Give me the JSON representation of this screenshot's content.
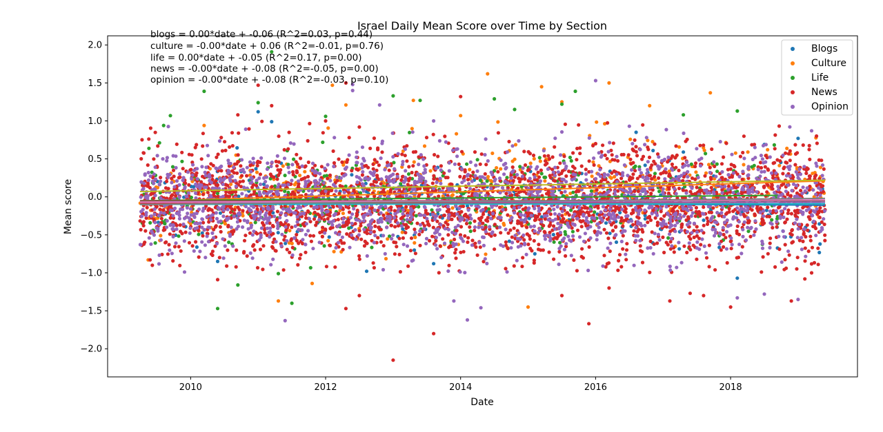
{
  "chart_data": {
    "type": "scatter",
    "title": "Israel Daily Mean Score over Time by Section",
    "xlabel": "Date",
    "ylabel": "Mean score",
    "xlim": [
      2008.77,
      2019.88
    ],
    "ylim": [
      -2.37,
      2.12
    ],
    "x_ticks": [
      "2010",
      "2012",
      "2014",
      "2016",
      "2018"
    ],
    "y_ticks": [
      "2.0",
      "1.5",
      "1.0",
      "0.5",
      "0.0",
      "−0.5",
      "−1.0",
      "−1.5",
      "−2.0"
    ],
    "grid": false,
    "legend_position": "top-right",
    "series": [
      {
        "name": "Blogs",
        "color": "#1f77b4",
        "x_range": [
          2009.5,
          2019.4
        ],
        "outliers": [
          [
            2011.0,
            1.12
          ],
          [
            2011.2,
            0.99
          ],
          [
            2010.4,
            -0.85
          ],
          [
            2013.6,
            -0.88
          ],
          [
            2015.1,
            -0.75
          ],
          [
            2017.3,
            0.59
          ],
          [
            2018.1,
            -1.07
          ],
          [
            2016.6,
            0.85
          ],
          [
            2018.5,
            0.69
          ],
          [
            2019.0,
            0.77
          ]
        ]
      },
      {
        "name": "Culture",
        "color": "#ff7f0e",
        "x_range": [
          2009.25,
          2019.4
        ],
        "outliers": [
          [
            2014.4,
            1.62
          ],
          [
            2012.3,
            1.21
          ],
          [
            2013.3,
            1.27
          ],
          [
            2015.2,
            1.45
          ],
          [
            2016.2,
            1.5
          ],
          [
            2017.7,
            1.37
          ],
          [
            2011.3,
            -1.37
          ],
          [
            2011.8,
            -1.14
          ],
          [
            2015.0,
            -1.45
          ],
          [
            2012.1,
            1.47
          ],
          [
            2016.8,
            1.2
          ],
          [
            2010.2,
            0.94
          ],
          [
            2014.0,
            1.07
          ],
          [
            2015.5,
            1.25
          ]
        ]
      },
      {
        "name": "Life",
        "color": "#2ca02c",
        "x_range": [
          2009.25,
          2018.7
        ],
        "outliers": [
          [
            2011.2,
            1.91
          ],
          [
            2010.2,
            1.39
          ],
          [
            2013.4,
            1.27
          ],
          [
            2015.7,
            1.39
          ],
          [
            2009.7,
            1.07
          ],
          [
            2011.0,
            1.24
          ],
          [
            2012.0,
            1.06
          ],
          [
            2013.0,
            1.33
          ],
          [
            2014.5,
            1.29
          ],
          [
            2015.5,
            1.22
          ],
          [
            2017.3,
            1.08
          ],
          [
            2018.1,
            1.13
          ],
          [
            2010.4,
            -1.47
          ],
          [
            2010.7,
            -1.16
          ],
          [
            2011.5,
            -1.4
          ],
          [
            2011.3,
            -1.01
          ],
          [
            2009.6,
            0.94
          ],
          [
            2014.8,
            1.15
          ]
        ]
      },
      {
        "name": "News",
        "color": "#d62728",
        "x_range": [
          2009.25,
          2019.4
        ],
        "outliers": [
          [
            2009.3,
            0.58
          ],
          [
            2010.7,
            1.08
          ],
          [
            2011.2,
            1.2
          ],
          [
            2011.0,
            1.47
          ],
          [
            2012.3,
            1.5
          ],
          [
            2013.0,
            -2.15
          ],
          [
            2013.6,
            -1.8
          ],
          [
            2014.0,
            1.32
          ],
          [
            2015.9,
            -1.67
          ],
          [
            2015.5,
            -1.3
          ],
          [
            2010.4,
            -1.09
          ],
          [
            2012.0,
            1.0
          ],
          [
            2012.5,
            0.92
          ],
          [
            2016.0,
            0.7
          ],
          [
            2016.2,
            -1.2
          ],
          [
            2017.1,
            -1.37
          ],
          [
            2017.4,
            -1.27
          ],
          [
            2017.6,
            -1.3
          ],
          [
            2018.0,
            -1.45
          ],
          [
            2019.1,
            -1.08
          ],
          [
            2019.2,
            -1.0
          ],
          [
            2018.9,
            -1.37
          ],
          [
            2009.4,
            -0.83
          ],
          [
            2012.3,
            -1.47
          ],
          [
            2012.5,
            -1.3
          ]
        ]
      },
      {
        "name": "Opinion",
        "color": "#9467bd",
        "x_range": [
          2009.25,
          2019.4
        ],
        "outliers": [
          [
            2016.0,
            1.53
          ],
          [
            2012.4,
            1.4
          ],
          [
            2012.8,
            1.21
          ],
          [
            2013.6,
            1.0
          ],
          [
            2011.4,
            -1.63
          ],
          [
            2014.1,
            -1.62
          ],
          [
            2014.3,
            -1.46
          ],
          [
            2017.2,
            -0.93
          ],
          [
            2018.5,
            -1.28
          ],
          [
            2019.0,
            -1.35
          ],
          [
            2019.2,
            0.87
          ],
          [
            2013.9,
            -1.37
          ],
          [
            2018.1,
            -1.33
          ],
          [
            2016.5,
            0.93
          ],
          [
            2012.4,
            1.48
          ]
        ]
      }
    ],
    "trend_lines": [
      {
        "series": "Blogs",
        "color": "#1f77b4",
        "x": [
          2009.25,
          2019.4
        ],
        "y": [
          -0.06,
          -0.11
        ]
      },
      {
        "series": "Culture",
        "color": "#ff7f0e",
        "x": [
          2009.25,
          2019.4
        ],
        "y": [
          -0.06,
          0.21
        ]
      },
      {
        "series": "Life",
        "color": "#2ca02c",
        "x": [
          2009.25,
          2018.7
        ],
        "y": [
          -0.05,
          0.02
        ]
      },
      {
        "series": "News",
        "color": "#d62728",
        "x": [
          2009.25,
          2019.4
        ],
        "y": [
          -0.09,
          -0.07
        ]
      },
      {
        "series": "Opinion",
        "color": "#9467bd",
        "x": [
          2009.25,
          2019.4
        ],
        "y": [
          -0.07,
          -0.07
        ]
      },
      {
        "series": "",
        "color": "#8c564b",
        "x": [
          2009.25,
          2019.4
        ],
        "y": [
          -0.05,
          -0.05
        ]
      },
      {
        "series": "",
        "color": "#e377c2",
        "x": [
          2009.25,
          2019.4
        ],
        "y": [
          -0.07,
          -0.04
        ]
      },
      {
        "series": "",
        "color": "#bcbd22",
        "x": [
          2009.25,
          2019.4
        ],
        "y": [
          0.07,
          0.22
        ]
      },
      {
        "series": "",
        "color": "#17becf",
        "x": [
          2009.25,
          2019.4
        ],
        "y": [
          -0.1,
          -0.09
        ]
      },
      {
        "series": "",
        "color": "#7f7f7f",
        "x": [
          2009.25,
          2019.4
        ],
        "y": [
          -0.1,
          -0.02
        ]
      }
    ],
    "annotations": [
      "blogs = 0.00*date + -0.06  (R^2=0.03, p=0.44)",
      "culture = -0.00*date + 0.06  (R^2=-0.01, p=0.76)",
      "life = 0.00*date + -0.05  (R^2=0.17, p=0.00)",
      "news = -0.00*date + -0.08  (R^2=-0.05, p=0.00)",
      "opinion = -0.00*date + -0.08  (R^2=-0.03, p=0.10)"
    ]
  }
}
